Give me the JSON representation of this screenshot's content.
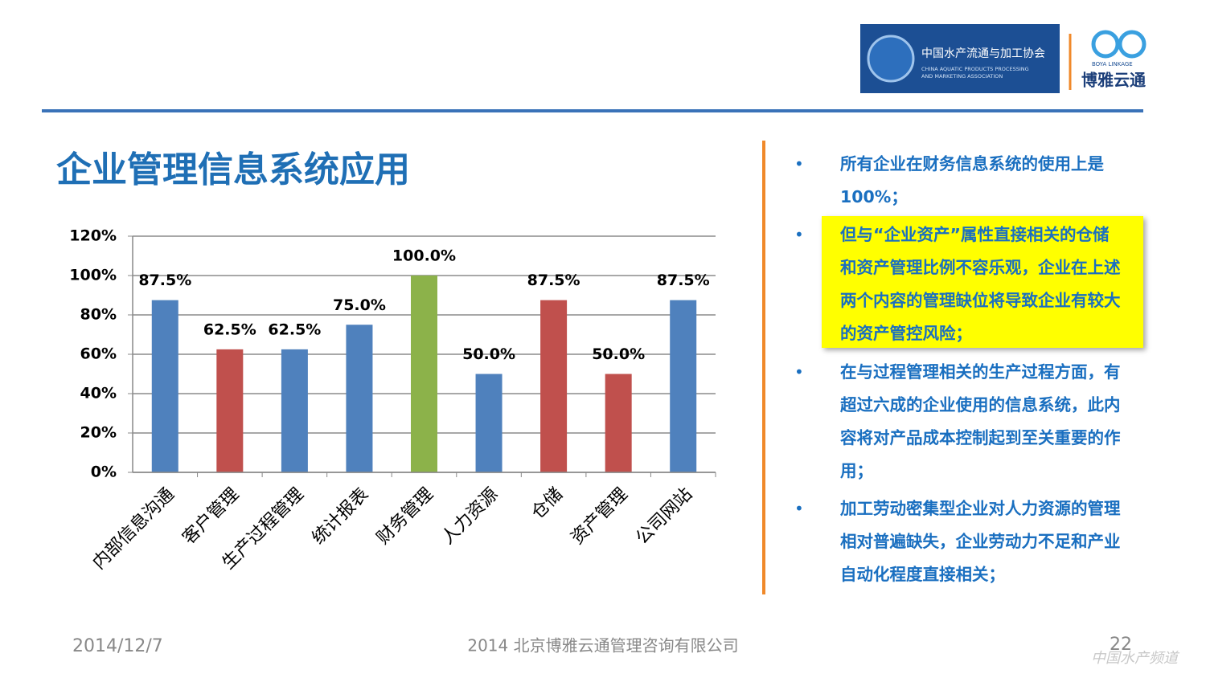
{
  "header": {
    "assoc_name": "中国水产流通与加工协会",
    "assoc_sub1": "CHINA AQUATIC PRODUCTS PROCESSING",
    "assoc_sub2": "AND MARKETING ASSOCIATION",
    "brand_sub": "BOYA LINKAGE",
    "brand_name": "博雅云通"
  },
  "title": "企业管理信息系统应用",
  "chart_data": {
    "type": "bar",
    "categories": [
      "内部信息沟通",
      "客户管理",
      "生产过程管理",
      "统计报表",
      "财务管理",
      "人力资源",
      "仓储",
      "资产管理",
      "公司网站"
    ],
    "values": [
      87.5,
      62.5,
      62.5,
      75,
      100,
      50,
      87.5,
      50,
      87.5
    ],
    "value_labels": [
      "87.5%",
      "62.5%",
      "62.5%",
      "75.0%",
      "100.0%",
      "50.0%",
      "87.5%",
      "50.0%",
      "87.5%"
    ],
    "colors": [
      "#4f81bd",
      "#c0504d",
      "#4f81bd",
      "#4f81bd",
      "#8cb24a",
      "#4f81bd",
      "#c0504d",
      "#c0504d",
      "#4f81bd"
    ],
    "ylim": [
      0,
      120
    ],
    "yticks": [
      {
        "value": 0,
        "label": "0%"
      },
      {
        "value": 20,
        "label": "20%"
      },
      {
        "value": 40,
        "label": "40%"
      },
      {
        "value": 60,
        "label": "60%"
      },
      {
        "value": 80,
        "label": "80%"
      },
      {
        "value": 100,
        "label": "100%"
      },
      {
        "value": 120,
        "label": "120%"
      }
    ],
    "grid": true
  },
  "bullets": [
    "所有企业在财务信息系统的使用上是100%；",
    "但与“企业资产”属性直接相关的仓储和资产管理比例不容乐观，企业在上述两个内容的管理缺位将导致企业有较大的资产管控风险；",
    "在与过程管理相关的生产过程方面，有超过六成的企业使用的信息系统，此内容将对产品成本控制起到至关重要的作用；",
    "加工劳动密集型企业对人力资源的管理相对普遍缺失，企业劳动力不足和产业自动化程度直接相关；"
  ],
  "footer": {
    "date": "2014/12/7",
    "company": "2014 北京博雅云通管理咨询有限公司",
    "page": "22",
    "watermark": "中国水产频道"
  }
}
